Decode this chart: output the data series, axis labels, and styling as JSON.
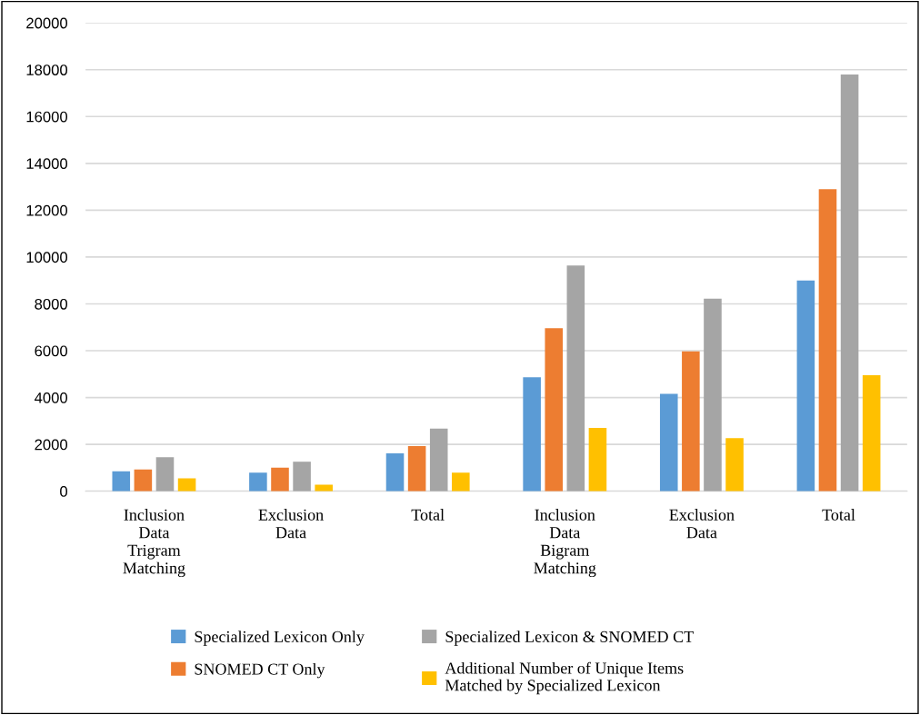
{
  "chart_data": {
    "type": "bar",
    "categories": [
      "Inclusion\nData\nTrigram\nMatching",
      "Exclusion\nData",
      "Total",
      "Inclusion\nData\nBigram\nMatching",
      "Exclusion\nData",
      "Total"
    ],
    "series": [
      {
        "name": "Specialized Lexicon Only",
        "color": "#5b9bd5",
        "values": [
          855,
          790,
          1620,
          4870,
          4160,
          9000
        ]
      },
      {
        "name": "SNOMED CT Only",
        "color": "#ed7d31",
        "values": [
          930,
          1010,
          1930,
          6960,
          5970,
          12900
        ]
      },
      {
        "name": "Specialized Lexicon & SNOMED CT",
        "color": "#a5a5a5",
        "values": [
          1450,
          1260,
          2670,
          9640,
          8220,
          17800
        ]
      },
      {
        "name": "Additional Number of Unique Items\nMatched by Specialized Lexicon",
        "color": "#ffc000",
        "values": [
          550,
          280,
          790,
          2700,
          2270,
          4950
        ]
      }
    ],
    "ylim": [
      0,
      20000
    ],
    "yticks": [
      0,
      2000,
      4000,
      6000,
      8000,
      10000,
      12000,
      14000,
      16000,
      18000,
      20000
    ],
    "grid": "y",
    "legend": "bottom"
  }
}
